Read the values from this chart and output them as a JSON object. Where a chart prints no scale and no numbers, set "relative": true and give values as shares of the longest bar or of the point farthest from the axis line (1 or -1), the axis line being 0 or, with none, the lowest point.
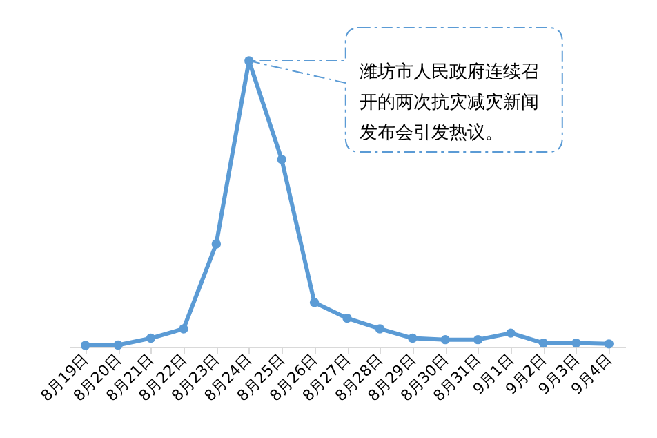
{
  "chart_data": {
    "type": "line",
    "relative": true,
    "marker": "circle",
    "grid": false,
    "categories": [
      "8月19日",
      "8月20日",
      "8月21日",
      "8月22日",
      "8月23日",
      "8月24日",
      "8月25日",
      "8月26日",
      "8月27日",
      "8月28日",
      "8月29日",
      "8月30日",
      "8月31日",
      "9月1日",
      "9月2日",
      "9月3日",
      "9月4日"
    ],
    "series": [
      {
        "color": "#5b9bd5",
        "values": [
          0.005,
          0.006,
          0.03,
          0.063,
          0.36,
          1,
          0.655,
          0.155,
          0.1,
          0.063,
          0.03,
          0.025,
          0.025,
          0.048,
          0.013,
          0.013,
          0.01
        ]
      }
    ],
    "annotations": [
      "潍坊市人民政府连续召开的两次抗灾减灾新闻发布会引发热议。"
    ]
  }
}
